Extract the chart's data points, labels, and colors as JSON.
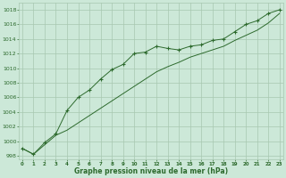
{
  "x": [
    0,
    1,
    2,
    3,
    4,
    5,
    6,
    7,
    8,
    9,
    10,
    11,
    12,
    13,
    14,
    15,
    16,
    17,
    18,
    19,
    20,
    21,
    22,
    23
  ],
  "line1": [
    999.0,
    998.2,
    999.8,
    1001.0,
    1004.2,
    1006.0,
    1007.0,
    1008.5,
    1009.8,
    1010.5,
    1012.0,
    1012.2,
    1013.0,
    1012.7,
    1012.5,
    1013.0,
    1013.2,
    1013.8,
    1014.0,
    1015.0,
    1016.0,
    1016.5,
    1017.5,
    1018.0
  ],
  "line2": [
    999.0,
    998.2,
    999.5,
    1000.8,
    1001.5,
    1002.5,
    1003.5,
    1004.5,
    1005.5,
    1006.5,
    1007.5,
    1008.5,
    1009.5,
    1010.2,
    1010.8,
    1011.5,
    1012.0,
    1012.5,
    1013.0,
    1013.8,
    1014.5,
    1015.2,
    1016.2,
    1017.5
  ],
  "line_color": "#2d6a2d",
  "bg_color": "#cce8d8",
  "grid_color": "#a8c8b0",
  "xlabel": "Graphe pression niveau de la mer (hPa)",
  "ylim": [
    997.5,
    1019
  ],
  "yticks": [
    998,
    1000,
    1002,
    1004,
    1006,
    1008,
    1010,
    1012,
    1014,
    1016,
    1018
  ],
  "xticks": [
    0,
    1,
    2,
    3,
    4,
    5,
    6,
    7,
    8,
    9,
    10,
    11,
    12,
    13,
    14,
    15,
    16,
    17,
    18,
    19,
    20,
    21,
    22,
    23
  ],
  "xlim": [
    -0.3,
    23.3
  ]
}
